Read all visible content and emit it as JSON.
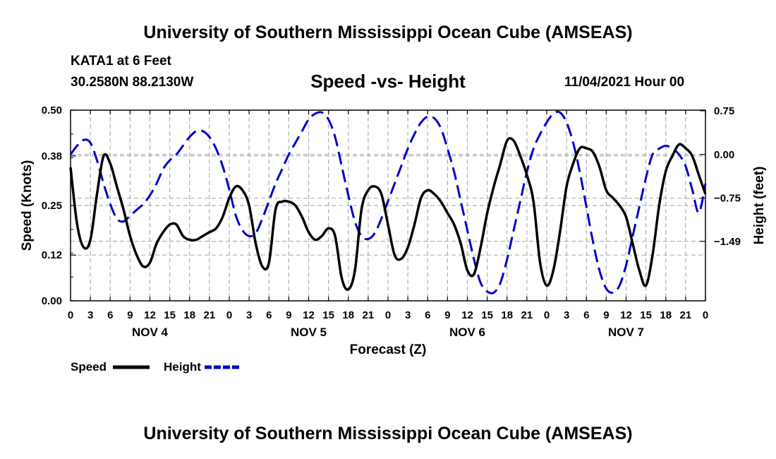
{
  "header": {
    "title": "University of Southern Mississippi Ocean Cube (AMSEAS)",
    "station": "KATA1 at 6 Feet",
    "coords": "30.2580N  88.2130W",
    "subtitle": "Speed -vs- Height",
    "date": "11/04/2021 Hour 00"
  },
  "footer": {
    "title": "University of Southern Mississippi Ocean Cube (AMSEAS)"
  },
  "colors": {
    "speed": "#000000",
    "height": "#0000cc",
    "grid": "#b0b0b0"
  },
  "chart_data": {
    "type": "line",
    "title": "Speed -vs- Height",
    "xlabel": "Forecast (Z)",
    "ylabel": "Speed (Knots)",
    "ylabel_right": "Height (feet)",
    "xlim": [
      0,
      96
    ],
    "ylim": [
      0,
      0.5
    ],
    "ylim_right": [
      -2.51,
      0.76
    ],
    "yticks": [
      0.0,
      0.12,
      0.25,
      0.38,
      0.5
    ],
    "yticklabels": [
      "0.00",
      "0.12",
      "0.25",
      "0.38",
      "0.50"
    ],
    "yticks_right": [
      0.75,
      0.0,
      -0.75,
      -1.49
    ],
    "yticklabels_right": [
      "0.75",
      "0.00",
      "−0.75",
      "−1.49"
    ],
    "xticks": [
      0,
      3,
      6,
      9,
      12,
      15,
      18,
      21,
      24,
      27,
      30,
      33,
      36,
      39,
      42,
      45,
      48,
      51,
      54,
      57,
      60,
      63,
      66,
      69,
      72,
      75,
      78,
      81,
      84,
      87,
      90,
      93,
      96
    ],
    "xticklabels": [
      "0",
      "3",
      "6",
      "9",
      "12",
      "15",
      "18",
      "21",
      "0",
      "3",
      "6",
      "9",
      "12",
      "15",
      "18",
      "21",
      "0",
      "3",
      "6",
      "9",
      "12",
      "15",
      "18",
      "21",
      "0",
      "3",
      "6",
      "9",
      "12",
      "15",
      "18",
      "21",
      "0"
    ],
    "day_labels": [
      {
        "label": "NOV 4",
        "x": 12
      },
      {
        "label": "NOV 5",
        "x": 36
      },
      {
        "label": "NOV 6",
        "x": 60
      },
      {
        "label": "NOV 7",
        "x": 84
      }
    ],
    "series": [
      {
        "name": "Speed",
        "axis": "left",
        "style": "solid",
        "x": [
          0,
          1,
          2,
          3,
          4,
          5,
          6,
          7,
          8,
          9,
          10,
          11,
          12,
          13,
          14,
          15,
          16,
          17,
          18,
          19,
          20,
          21,
          22,
          23,
          24,
          25,
          26,
          27,
          28,
          29,
          30,
          31,
          32,
          33,
          34,
          35,
          36,
          37,
          38,
          39,
          40,
          41,
          42,
          43,
          44,
          45,
          46,
          47,
          48,
          49,
          50,
          51,
          52,
          53,
          54,
          55,
          56,
          57,
          58,
          59,
          60,
          61,
          62,
          63,
          64,
          65,
          66,
          67,
          68,
          69,
          70,
          71,
          72,
          73,
          74,
          75,
          76,
          77,
          78,
          79,
          80,
          81,
          82,
          83,
          84,
          85,
          86,
          87,
          88,
          89,
          90,
          91,
          92,
          93,
          94,
          95,
          96
        ],
        "values": [
          0.35,
          0.2,
          0.14,
          0.16,
          0.28,
          0.38,
          0.36,
          0.3,
          0.24,
          0.17,
          0.12,
          0.09,
          0.1,
          0.15,
          0.18,
          0.2,
          0.2,
          0.17,
          0.16,
          0.16,
          0.17,
          0.18,
          0.19,
          0.22,
          0.27,
          0.3,
          0.29,
          0.25,
          0.15,
          0.09,
          0.1,
          0.24,
          0.26,
          0.26,
          0.25,
          0.22,
          0.18,
          0.16,
          0.17,
          0.19,
          0.17,
          0.06,
          0.03,
          0.08,
          0.24,
          0.29,
          0.3,
          0.28,
          0.2,
          0.12,
          0.11,
          0.14,
          0.2,
          0.27,
          0.29,
          0.28,
          0.26,
          0.23,
          0.2,
          0.15,
          0.08,
          0.07,
          0.14,
          0.23,
          0.3,
          0.36,
          0.42,
          0.42,
          0.38,
          0.33,
          0.26,
          0.1,
          0.04,
          0.08,
          0.18,
          0.3,
          0.36,
          0.4,
          0.4,
          0.39,
          0.35,
          0.29,
          0.27,
          0.25,
          0.22,
          0.15,
          0.08,
          0.04,
          0.12,
          0.25,
          0.34,
          0.38,
          0.41,
          0.4,
          0.38,
          0.33,
          0.28
        ]
      },
      {
        "name": "Height",
        "axis": "right",
        "style": "dashed",
        "x": [
          0,
          1,
          2,
          3,
          4,
          5,
          6,
          7,
          8,
          9,
          10,
          11,
          12,
          13,
          14,
          15,
          16,
          17,
          18,
          19,
          20,
          21,
          22,
          23,
          24,
          25,
          26,
          27,
          28,
          29,
          30,
          31,
          32,
          33,
          34,
          35,
          36,
          37,
          38,
          39,
          40,
          41,
          42,
          43,
          44,
          45,
          46,
          47,
          48,
          49,
          50,
          51,
          52,
          53,
          54,
          55,
          56,
          57,
          58,
          59,
          60,
          61,
          62,
          63,
          64,
          65,
          66,
          67,
          68,
          69,
          70,
          71,
          72,
          73,
          74,
          75,
          76,
          77,
          78,
          79,
          80,
          81,
          82,
          83,
          84,
          85,
          86,
          87,
          88,
          89,
          90,
          91,
          92,
          93,
          94,
          95,
          96
        ],
        "values": [
          0.0,
          0.15,
          0.25,
          0.2,
          -0.1,
          -0.5,
          -0.85,
          -1.1,
          -1.15,
          -1.05,
          -0.95,
          -0.85,
          -0.7,
          -0.5,
          -0.25,
          -0.1,
          0.0,
          0.15,
          0.3,
          0.4,
          0.4,
          0.3,
          0.1,
          -0.2,
          -0.6,
          -1.05,
          -1.3,
          -1.4,
          -1.35,
          -1.1,
          -0.8,
          -0.5,
          -0.25,
          0.0,
          0.2,
          0.4,
          0.6,
          0.7,
          0.72,
          0.6,
          0.3,
          -0.2,
          -0.7,
          -1.15,
          -1.4,
          -1.45,
          -1.35,
          -1.1,
          -0.8,
          -0.5,
          -0.2,
          0.1,
          0.35,
          0.55,
          0.65,
          0.62,
          0.45,
          0.1,
          -0.3,
          -0.8,
          -1.3,
          -1.8,
          -2.2,
          -2.35,
          -2.37,
          -2.2,
          -1.8,
          -1.3,
          -0.8,
          -0.3,
          0.1,
          0.35,
          0.55,
          0.7,
          0.72,
          0.55,
          0.2,
          -0.3,
          -0.9,
          -1.5,
          -2.0,
          -2.3,
          -2.37,
          -2.25,
          -1.9,
          -1.4,
          -0.9,
          -0.4,
          0.0,
          0.1,
          0.15,
          0.1,
          0.0,
          -0.2,
          -0.6,
          -1.0,
          -0.5
        ]
      }
    ],
    "legend": [
      {
        "label": "Speed",
        "style": "solid",
        "color": "#000000"
      },
      {
        "label": "Height",
        "style": "dashed",
        "color": "#0000cc"
      }
    ]
  }
}
